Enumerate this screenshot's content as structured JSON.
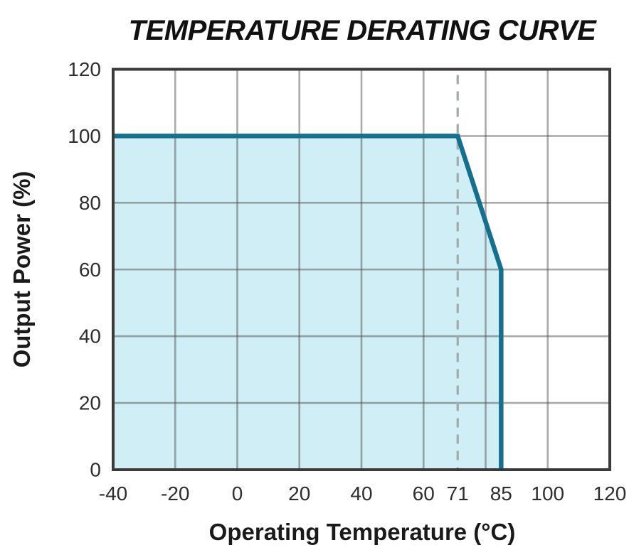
{
  "chart_data": {
    "type": "area",
    "title": "TEMPERATURE DERATING CURVE",
    "xlabel": "Operating Temperature (°C)",
    "ylabel": "Output Power (%)",
    "xlim": [
      -40,
      120
    ],
    "ylim": [
      0,
      120
    ],
    "x_ticks": [
      -40,
      -20,
      0,
      20,
      40,
      60,
      71,
      85,
      100,
      120
    ],
    "y_ticks": [
      0,
      20,
      40,
      60,
      80,
      100,
      120
    ],
    "grid": true,
    "grid_step": 20,
    "legend": "none",
    "series": [
      {
        "name": "output-power-derating",
        "points": [
          [
            -40,
            100
          ],
          [
            71,
            100
          ],
          [
            85,
            60
          ],
          [
            85,
            0
          ]
        ]
      }
    ],
    "reference_line": {
      "axis": "x",
      "value": 71,
      "style": "dashed"
    },
    "colors": {
      "line": "#15708f",
      "fill": "#cfeef5",
      "grid": "#ababab",
      "grid_rgba": "rgba(75,75,75,0.47)",
      "frame": "#3a3a3a",
      "dashed_line": "#a2aaad",
      "tick_text": "#2e2e2e",
      "title_text": "#111111"
    }
  }
}
